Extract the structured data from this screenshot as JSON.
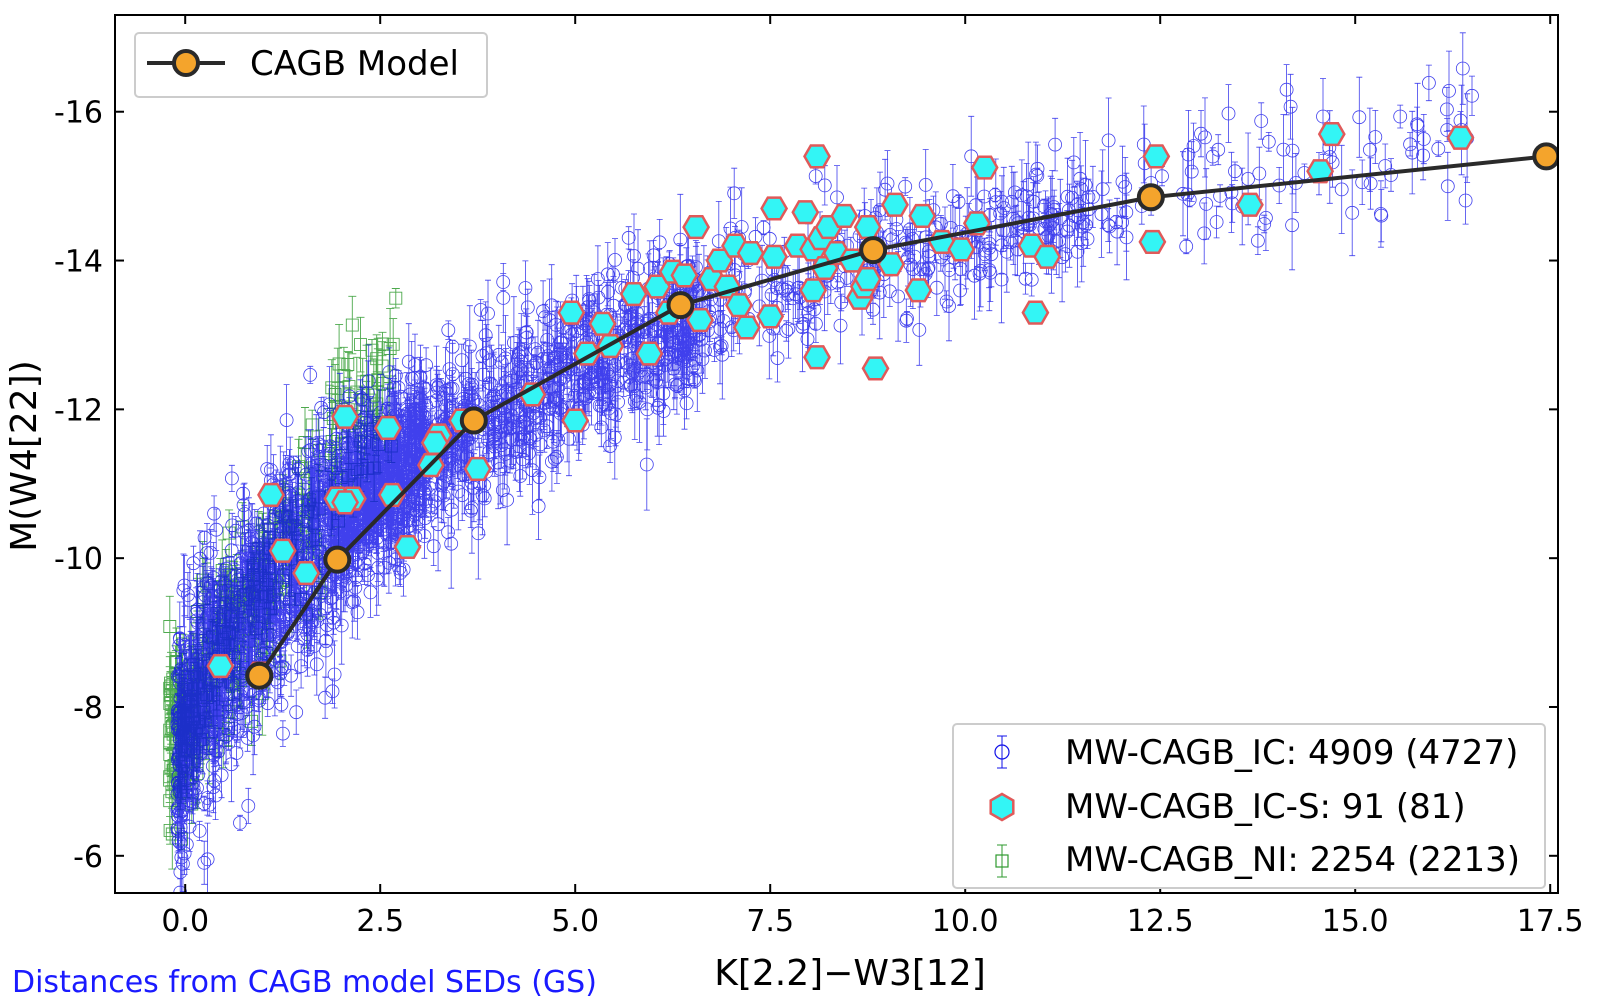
{
  "footnote": "Distances from CAGB model SEDs (GS)",
  "colors": {
    "ic": "#1010e8",
    "ic_s_face": "#33f5f5",
    "ic_s_edge": "#e05a5a",
    "ni": "#2e9a2e",
    "model_line": "#2a2a2a",
    "model_marker": "#f4a42c",
    "footnote": "#1a1aff"
  },
  "chart_data": {
    "type": "scatter",
    "title": "",
    "xlabel": "K[2.2]−W3[12]",
    "ylabel": "M(W4[22])",
    "xlim": [
      -0.9,
      17.6
    ],
    "ylim": [
      -5.5,
      -17.3
    ],
    "y_inverted": true,
    "grid": false,
    "x_ticks": [
      0.0,
      2.5,
      5.0,
      7.5,
      10.0,
      12.5,
      15.0,
      17.5
    ],
    "x_tick_labels": [
      "0.0",
      "2.5",
      "5.0",
      "7.5",
      "10.0",
      "12.5",
      "15.0",
      "17.5"
    ],
    "y_ticks": [
      -6,
      -8,
      -10,
      -12,
      -14,
      -16
    ],
    "y_tick_labels": [
      "-6",
      "-8",
      "-10",
      "-12",
      "-14",
      "-16"
    ],
    "legend_top_left": {
      "placement": "top-left",
      "entries": [
        {
          "label": "CAGB Model",
          "series": "CAGB Model"
        }
      ]
    },
    "legend_bottom_right": {
      "placement": "bottom-right",
      "entries": [
        {
          "label": "MW-CAGB_IC: 4909 (4727)",
          "series": "MW-CAGB_IC"
        },
        {
          "label": "MW-CAGB_IC-S: 91 (81)",
          "series": "MW-CAGB_IC-S"
        },
        {
          "label": "MW-CAGB_NI: 2254 (2213)",
          "series": "MW-CAGB_NI"
        }
      ]
    },
    "series": [
      {
        "name": "CAGB Model",
        "kind": "line-marker",
        "x": [
          0.95,
          1.95,
          3.7,
          6.35,
          8.82,
          12.38,
          17.45
        ],
        "y": [
          -8.42,
          -9.98,
          -11.85,
          -13.4,
          -14.14,
          -14.85,
          -15.4
        ]
      },
      {
        "name": "MW-CAGB_IC-S",
        "kind": "hexagon",
        "x": [
          0.45,
          0.95,
          1.1,
          1.25,
          1.55,
          1.95,
          2.05,
          2.15,
          2.05,
          2.6,
          2.65,
          2.85,
          3.15,
          3.25,
          3.2,
          3.55,
          3.75,
          4.45,
          4.95,
          5.0,
          5.15,
          5.35,
          5.45,
          5.75,
          5.95,
          6.05,
          6.2,
          6.25,
          6.4,
          6.55,
          6.6,
          6.75,
          6.85,
          6.95,
          7.05,
          7.1,
          7.2,
          7.25,
          7.5,
          7.55,
          7.55,
          7.85,
          7.95,
          8.05,
          8.05,
          8.1,
          8.1,
          8.15,
          8.2,
          8.25,
          8.35,
          8.45,
          8.55,
          8.65,
          8.7,
          8.75,
          8.75,
          8.85,
          9.05,
          9.1,
          9.4,
          9.45,
          9.7,
          9.95,
          10.15,
          10.25,
          10.85,
          10.9,
          11.05,
          12.4,
          12.45,
          13.65,
          14.55,
          14.7,
          16.35
        ],
        "y": [
          -8.55,
          -8.45,
          -10.85,
          -10.1,
          -9.8,
          -10.8,
          -11.9,
          -10.8,
          -10.75,
          -11.75,
          -10.85,
          -10.15,
          -11.25,
          -11.65,
          -11.55,
          -11.85,
          -11.2,
          -12.2,
          -13.3,
          -11.85,
          -12.75,
          -13.15,
          -12.85,
          -13.55,
          -12.75,
          -13.65,
          -13.3,
          -13.85,
          -13.8,
          -14.45,
          -13.2,
          -13.75,
          -14.0,
          -13.65,
          -14.2,
          -13.4,
          -13.1,
          -14.1,
          -13.25,
          -14.7,
          -14.05,
          -14.2,
          -14.65,
          -13.6,
          -14.15,
          -15.4,
          -12.7,
          -14.3,
          -13.9,
          -14.45,
          -14.1,
          -14.6,
          -14.0,
          -13.5,
          -13.65,
          -14.45,
          -13.75,
          -12.55,
          -13.95,
          -14.75,
          -13.6,
          -14.6,
          -14.25,
          -14.15,
          -14.5,
          -15.25,
          -14.2,
          -13.3,
          -14.05,
          -14.25,
          -15.4,
          -14.75,
          -15.2,
          -15.7,
          -15.65
        ]
      },
      {
        "name": "MW-CAGB_IC",
        "kind": "open-circle-errorbar",
        "description": "4909 (4727) sources in a dense band from (x 0, y -7.7) to (x 17, y -15.8)"
      },
      {
        "name": "MW-CAGB_NI",
        "kind": "open-square-errorbar",
        "description": "2254 (2213) sources concentrated at x -0.2 to 2.5, y -6.6 to -13"
      }
    ]
  }
}
